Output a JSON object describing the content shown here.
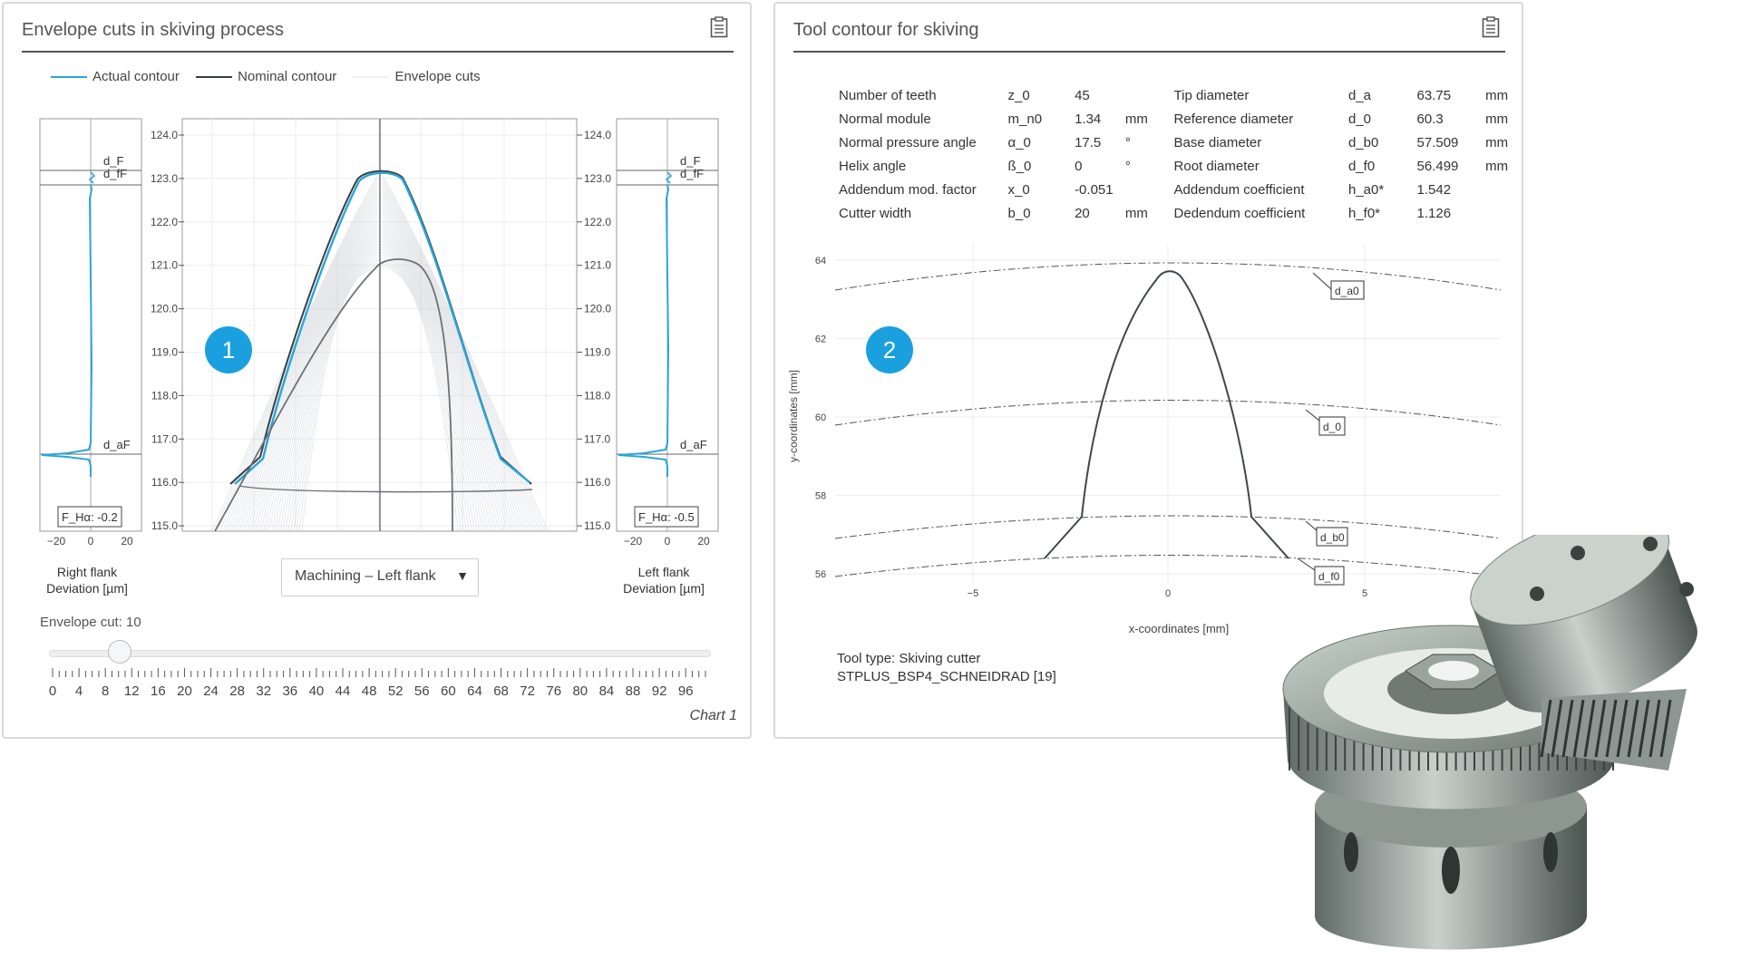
{
  "panel1": {
    "title": "Envelope cuts in skiving process",
    "legend": [
      {
        "label": "Actual contour",
        "color": "#2aa6d8"
      },
      {
        "label": "Nominal contour",
        "color": "#3a3f45"
      },
      {
        "label": "Envelope cuts",
        "color": "#dddddd"
      }
    ],
    "center_axis_ticks": [
      "124.0",
      "123.0",
      "122.0",
      "121.0",
      "120.0",
      "119.0",
      "118.0",
      "117.0",
      "116.0",
      "115.0"
    ],
    "right_axis_ticks": [
      "124.0",
      "123.0",
      "122.0",
      "121.0",
      "120.0",
      "119.0",
      "118.0",
      "117.0",
      "116.0",
      "115.0"
    ],
    "deviation_ticks": [
      "−20",
      "0",
      "20"
    ],
    "left_mini": {
      "d_F": "d_F",
      "d_fF": "d_fF",
      "d_aF": "d_aF",
      "fha": "F_Hα: -0.2",
      "label_line1": "Right flank",
      "label_line2": "Deviation [µm]"
    },
    "right_mini": {
      "d_F": "d_F",
      "d_fF": "d_fF",
      "d_aF": "d_aF",
      "fha": "F_Hα: -0.5",
      "label_line1": "Left flank",
      "label_line2": "Deviation [µm]"
    },
    "dropdown": {
      "value": "Machining – Left flank",
      "arrow": "▼"
    },
    "slider": {
      "label": "Envelope cut: 10",
      "value": 10,
      "min": 0,
      "max": 99,
      "tick_labels": [
        "0",
        "4",
        "8",
        "12",
        "16",
        "20",
        "24",
        "28",
        "32",
        "36",
        "40",
        "44",
        "48",
        "52",
        "56",
        "60",
        "64",
        "68",
        "72",
        "76",
        "80",
        "84",
        "88",
        "92",
        "96"
      ]
    },
    "chart_label": "Chart 1",
    "badge": "1"
  },
  "panel2": {
    "title": "Tool contour for skiving",
    "params": [
      {
        "name": "Number of teeth",
        "sym": "z_0",
        "val": "45",
        "unit": "",
        "name2": "Tip diameter",
        "sym2": "d_a",
        "val2": "63.75",
        "unit2": "mm"
      },
      {
        "name": "Normal module",
        "sym": "m_n0",
        "val": "1.34",
        "unit": "mm",
        "name2": "Reference diameter",
        "sym2": "d_0",
        "val2": "60.3",
        "unit2": "mm"
      },
      {
        "name": "Normal pressure angle",
        "sym": "α_0",
        "val": "17.5",
        "unit": "°",
        "name2": "Base diameter",
        "sym2": "d_b0",
        "val2": "57.509",
        "unit2": "mm"
      },
      {
        "name": "Helix angle",
        "sym": "ß_0",
        "val": "0",
        "unit": "°",
        "name2": "Root diameter",
        "sym2": "d_f0",
        "val2": "56.499",
        "unit2": "mm"
      },
      {
        "name": "Addendum mod. factor",
        "sym": "x_0",
        "val": "-0.051",
        "unit": "",
        "name2": "Addendum coefficient",
        "sym2": "h_a0*",
        "val2": "1.542",
        "unit2": ""
      },
      {
        "name": "Cutter width",
        "sym": "b_0",
        "val": "20",
        "unit": "mm",
        "name2": "Dedendum coefficient",
        "sym2": "h_f0*",
        "val2": "1.126",
        "unit2": ""
      }
    ],
    "chart": {
      "y_ticks": [
        "64",
        "62",
        "60",
        "58",
        "56"
      ],
      "x_ticks": [
        "−5",
        "0",
        "5"
      ],
      "xlabel": "x-coordinates [mm]",
      "ylabel": "y-coordinates [mm]",
      "circles": [
        "d_a0",
        "d_0",
        "d_b0",
        "d_f0"
      ]
    },
    "tool_type_line1": "Tool type: Skiving cutter",
    "tool_type_line2": "STPLUS_BSP4_SCHNEIDRAD [19]",
    "badge": "2"
  }
}
